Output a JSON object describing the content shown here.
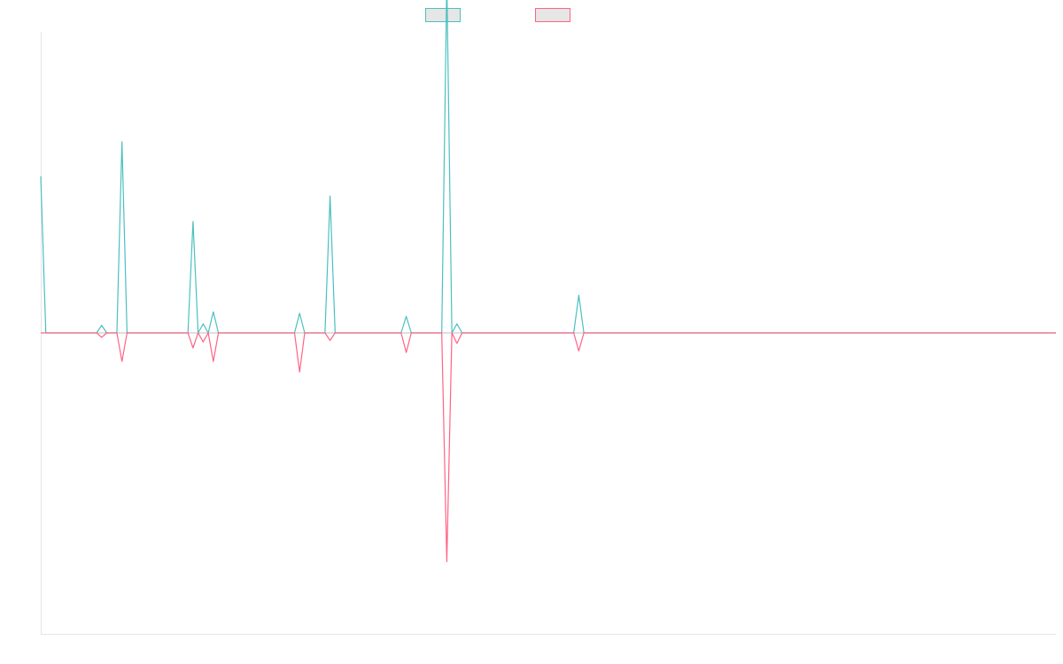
{
  "chart_data": {
    "type": "line",
    "title": "",
    "xlabel": "",
    "ylabel": "",
    "grid": false,
    "legend": "top-center",
    "x_count": 201,
    "ylim": [
      -100,
      100
    ],
    "series": [
      {
        "color": "#4bc0c0",
        "fill": "#e6e6e6",
        "values": [
          52,
          0,
          0,
          0,
          0,
          0,
          0,
          0,
          0,
          0,
          0,
          0,
          2.5,
          0,
          0,
          0,
          63.5,
          0,
          0,
          0,
          0,
          0,
          0,
          0,
          0,
          0,
          0,
          0,
          0,
          0,
          37,
          0,
          3,
          0,
          7,
          0,
          0,
          0,
          0,
          0,
          0,
          0,
          0,
          0,
          0,
          0,
          0,
          0,
          0,
          0,
          0,
          6.5,
          0,
          0,
          0,
          0,
          0,
          45.5,
          0,
          0,
          0,
          0,
          0,
          0,
          0,
          0,
          0,
          0,
          0,
          0,
          0,
          0,
          5.5,
          0,
          0,
          0,
          0,
          0,
          0,
          0,
          117,
          0,
          3,
          0,
          0,
          0,
          0,
          0,
          0,
          0,
          0,
          0,
          0,
          0,
          0,
          0,
          0,
          0,
          0,
          0,
          0,
          0,
          0,
          0,
          0,
          0,
          12.5,
          0,
          0,
          0,
          0,
          0,
          0,
          0,
          0,
          0,
          0,
          0,
          0,
          0,
          0,
          0,
          0,
          0,
          0,
          0,
          0,
          0,
          0,
          0,
          0,
          0,
          0,
          0,
          0,
          0,
          0,
          0,
          0,
          0,
          0,
          0,
          0,
          0,
          0,
          0,
          0,
          0,
          0,
          0,
          0,
          0,
          0,
          0,
          0,
          0,
          0,
          0,
          0,
          0,
          0,
          0,
          0,
          0,
          0,
          0,
          0,
          0,
          0,
          0,
          0,
          0,
          0,
          0,
          0,
          0,
          0,
          0,
          0,
          0,
          0,
          0,
          0,
          0,
          0,
          0,
          0,
          0,
          0,
          0,
          0,
          0,
          0,
          0,
          0,
          0,
          0,
          0,
          0,
          0,
          0
        ]
      },
      {
        "color": "#ff6384",
        "fill": "#e6e6e6",
        "values": [
          0,
          0,
          0,
          0,
          0,
          0,
          0,
          0,
          0,
          0,
          0,
          0,
          -1.5,
          0,
          0,
          0,
          -9.5,
          0,
          0,
          0,
          0,
          0,
          0,
          0,
          0,
          0,
          0,
          0,
          0,
          0,
          -5,
          0,
          -3,
          0,
          -9.5,
          0,
          0,
          0,
          0,
          0,
          0,
          0,
          0,
          0,
          0,
          0,
          0,
          0,
          0,
          0,
          0,
          -13,
          0,
          0,
          0,
          0,
          0,
          -2.5,
          0,
          0,
          0,
          0,
          0,
          0,
          0,
          0,
          0,
          0,
          0,
          0,
          0,
          0,
          -6.5,
          0,
          0,
          0,
          0,
          0,
          0,
          0,
          -76,
          0,
          -3.5,
          0,
          0,
          0,
          0,
          0,
          0,
          0,
          0,
          0,
          0,
          0,
          0,
          0,
          0,
          0,
          0,
          0,
          0,
          0,
          0,
          0,
          0,
          0,
          -6,
          0,
          0,
          0,
          0,
          0,
          0,
          0,
          0,
          0,
          0,
          0,
          0,
          0,
          0,
          0,
          0,
          0,
          0,
          0,
          0,
          0,
          0,
          0,
          0,
          0,
          0,
          0,
          0,
          0,
          0,
          0,
          0,
          0,
          0,
          0,
          0,
          0,
          0,
          0,
          0,
          0,
          0,
          0,
          0,
          0,
          0,
          0,
          0,
          0,
          0,
          0,
          0,
          0,
          0,
          0,
          0,
          0,
          0,
          0,
          0,
          0,
          0,
          0,
          0,
          0,
          0,
          0,
          0,
          0,
          0,
          0,
          0,
          0,
          0,
          0,
          0,
          0,
          0,
          0,
          0,
          0,
          0,
          0,
          0,
          0,
          0,
          0,
          0,
          0,
          0,
          0,
          0,
          0,
          0
        ]
      }
    ]
  }
}
